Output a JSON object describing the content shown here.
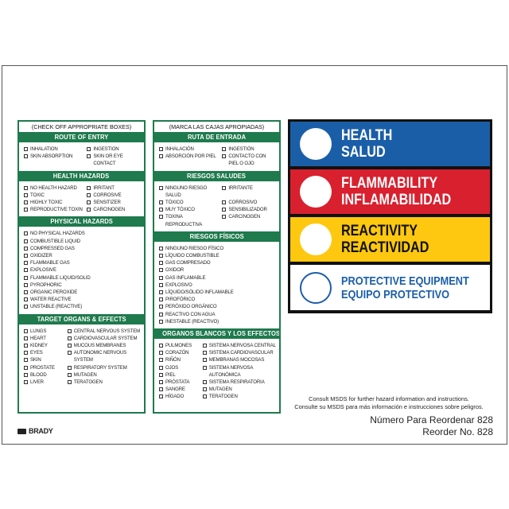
{
  "panels": [
    {
      "title": "(CHECK OFF APPROPRIATE BOXES)",
      "sections": [
        {
          "heading": "ROUTE OF ENTRY",
          "cols": 2,
          "items": [
            "INHALATION",
            "INGESTION",
            "SKIN ABSORPTION",
            "SKIN OR EYE CONTACT"
          ]
        },
        {
          "heading": "HEALTH HAZARDS",
          "cols": 2,
          "items": [
            "NO HEALTH HAZARD",
            "IRRITANT",
            "TOXIC",
            "CORROSIVE",
            "HIGHLY TOXIC",
            "SENSITIZER",
            "REPRODUCTIVE TOXIN",
            "CARCINOGEN"
          ]
        },
        {
          "heading": "PHYSICAL HAZARDS",
          "cols": 1,
          "items": [
            "NO PHYSICAL HAZARDS",
            "COMBUSTIBLE LIQUID",
            "COMPRESSED GAS",
            "OXIDIZER",
            "FLAMMABLE GAS",
            "EXPLOSIVE",
            "FLAMMABLE LIQUID/SOLID",
            "PYROPHORIC",
            "ORGANIC PEROXIDE",
            "WATER REACTIVE",
            "UNSTABLE (REACTIVE)"
          ]
        },
        {
          "heading": "TARGET ORGANS & EFFECTS",
          "cols": 2,
          "col_items": [
            [
              "LUNGS",
              "HEART",
              "KIDNEY",
              "EYES",
              "SKIN",
              "PROSTATE",
              "BLOOD",
              "LIVER"
            ],
            [
              "CENTRAL NERVOUS SYSTEM",
              "CARDIOVASCULAR SYSTEM",
              "MUCOUS MEMBRANES",
              "AUTONOMIC NERVOUS SYSTEM",
              "RESPIRATORY SYSTEM",
              "MUTAGEN",
              "TERATOGEN"
            ]
          ]
        }
      ]
    },
    {
      "title": "(MARCA LAS CAJAS APROPIADAS)",
      "sections": [
        {
          "heading": "RUTA DE ENTRADA",
          "cols": 2,
          "items": [
            "INHALACIÓN",
            "INGESTIÓN",
            "ABSORCIÓN POR PIEL",
            "CONTACTO CON PIEL O OJO"
          ]
        },
        {
          "heading": "RIESGOS SALUDES",
          "cols": 2,
          "items": [
            "NINGUNO RIESGO SALUD",
            "IRRITANTE",
            "TÓXICO",
            "CORROSIVO",
            "MUY TÓXICO",
            "SENSIBILIZADOR",
            "TOXINA REPRODUCTIVA",
            "CARCINOGEN"
          ]
        },
        {
          "heading": "RIESGOS FÍSICOS",
          "cols": 1,
          "items": [
            "NINGUNO RIESGO FÍSICO",
            "LÍQUIDO COMBUSTIBLE",
            "GAS COMPRESADO",
            "OXIDOR",
            "GAS INFLAMABLE",
            "EXPLOSIVO",
            "LÍQUIDO/SÓLIDO INFLAMABLE",
            "PIROFÓRICO",
            "PERÓXIDO ORGÁNICO",
            "REACTIVO CON AGUA",
            "INESTABLE (REACTIVO)"
          ]
        },
        {
          "heading": "ORGANOS BLANCOS Y LOS EFFECTOS",
          "cols": 2,
          "col_items": [
            [
              "PULMONES",
              "CORAZÓN",
              "RIÑÓN",
              "OJOS",
              "PIEL",
              "PRÓSTATA",
              "SANGRE",
              "HÍGADO"
            ],
            [
              "SISTEMA NERVOSA CENTRAL",
              "SISTEMA CARDIOVASCULAR",
              "MEMBRANAS MOCOSAS",
              "SISTEMA NERVOSA AUTONÓMICA",
              "SISTEMA RESPIRATORIA",
              "MUTAGEN",
              "TERATOGEN"
            ]
          ]
        }
      ]
    }
  ],
  "hazards": [
    {
      "en": "HEALTH",
      "es": "SALUD",
      "bg": "#1b5ea8",
      "fg": "#ffffff"
    },
    {
      "en": "FLAMMABILITY",
      "es": "INFLAMABILIDAD",
      "bg": "#d8202f",
      "fg": "#ffffff"
    },
    {
      "en": "REACTIVITY",
      "es": "REACTIVIDAD",
      "bg": "#fdc80f",
      "fg": "#111111"
    },
    {
      "en": "PROTECTIVE EQUIPMENT",
      "es": "EQUIPO PROTECTIVO",
      "bg": "#ffffff",
      "fg": "#1b5ea8"
    }
  ],
  "footer": {
    "msds_en": "Consult MSDS for further hazard information and instructions.",
    "msds_es": "Consulte su MSDS para más información e instrucciones sobre peligros.",
    "reorder_es": "Número Para Reordenar 828",
    "reorder_en": "Reorder No. 828",
    "brand": "BRADY"
  },
  "colors": {
    "green": "#1f7a4d"
  }
}
